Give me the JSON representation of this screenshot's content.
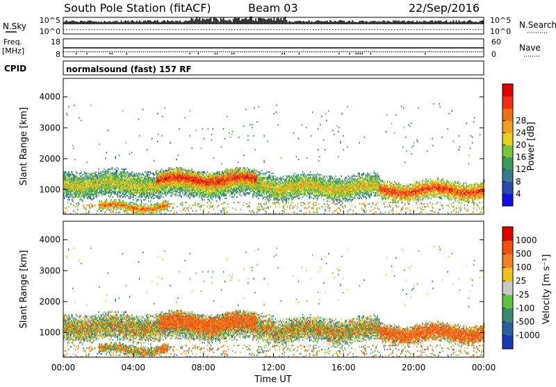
{
  "header": {
    "title": "South Pole Station (fitACF)",
    "beam": "Beam 03",
    "date": "22/Sep/2016"
  },
  "strip_labels": {
    "nsky": "N.Sky",
    "nsearch": "N.Search",
    "freq_line1": "Freq.",
    "freq_line2": "[MHz]",
    "nave": "Nave",
    "cpid": "CPID",
    "cpid_value": "normalsound (fast) 157 RF",
    "nsky_ticks": [
      "10^5",
      "10^0"
    ],
    "nsearch_ticks": [
      "10^5",
      "10^0"
    ],
    "freq_ticks": [
      "18",
      "8"
    ],
    "nave_ticks": [
      "60",
      "0"
    ]
  },
  "chart_data": [
    {
      "type": "heatmap",
      "name": "power",
      "ylabel": "Slant Range [km]",
      "xlabel": "",
      "ylim": [
        200,
        4600
      ],
      "yticks": [
        1000,
        2000,
        3000,
        4000
      ],
      "xlim": [
        0,
        24
      ],
      "colorbar": {
        "label": "Power [dB]",
        "ticks": [
          "4",
          "8",
          "12",
          "16",
          "20",
          "24",
          "28"
        ],
        "colors": [
          "#1010e0",
          "#2a4ab0",
          "#3a7a90",
          "#3b9a5a",
          "#7ac43a",
          "#e8d020",
          "#f0a020",
          "#f07010",
          "#f03010",
          "#e00000"
        ]
      },
      "echo_bands": [
        {
          "t0": 0.0,
          "t1": 12.0,
          "center": 1150,
          "width": 500,
          "level": 0.55
        },
        {
          "t0": 5.3,
          "t1": 11.0,
          "center": 1300,
          "width": 350,
          "level": 0.9
        },
        {
          "t0": 12.0,
          "t1": 18.0,
          "center": 1050,
          "width": 450,
          "level": 0.6
        },
        {
          "t0": 18.0,
          "t1": 24.0,
          "center": 950,
          "width": 350,
          "level": 0.85
        },
        {
          "t0": 2.0,
          "t1": 6.0,
          "center": 420,
          "width": 180,
          "level": 0.8
        }
      ]
    },
    {
      "type": "heatmap",
      "name": "velocity",
      "ylabel": "Slant Range [km]",
      "xlabel": "Time UT",
      "ylim": [
        200,
        4600
      ],
      "yticks": [
        1000,
        2000,
        3000,
        4000
      ],
      "xlim": [
        0,
        24
      ],
      "xticks": [
        "00:00",
        "04:00",
        "08:00",
        "12:00",
        "16:00",
        "20:00",
        "00:00"
      ],
      "colorbar": {
        "label": "Velocity [m s⁻¹]",
        "ticks": [
          "1000",
          "500",
          "100",
          "25",
          "-25",
          "-100",
          "-500",
          "-1000"
        ],
        "colors": [
          "#1838b0",
          "#2a60a0",
          "#3a8a70",
          "#60c040",
          "#c8c8c8",
          "#f0c020",
          "#f08020",
          "#f05010",
          "#e00000"
        ]
      }
    }
  ]
}
